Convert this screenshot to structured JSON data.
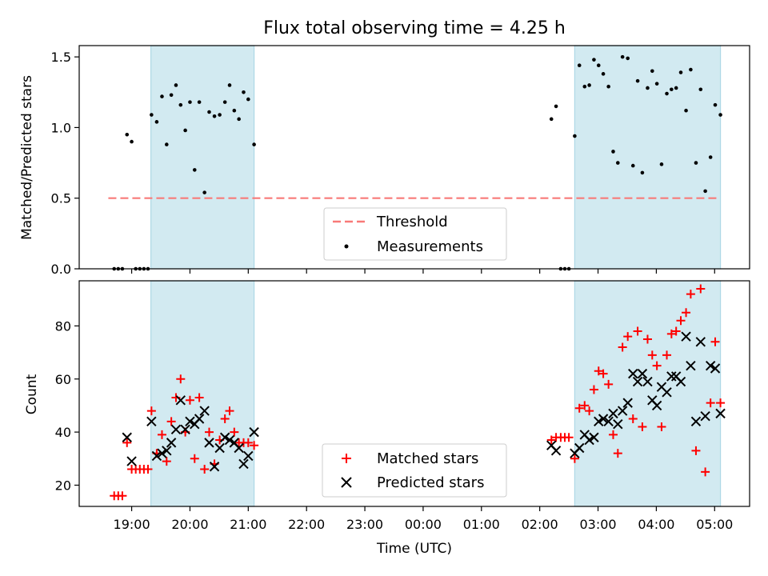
{
  "chart_data": [
    {
      "type": "scatter",
      "title": "Flux total observing time = 4.25 h",
      "ylabel": "Matched/Predicted stars",
      "xlabel": "",
      "xlim": [
        18.1,
        29.6
      ],
      "ylim": [
        0,
        1.58
      ],
      "yticks": [
        0,
        0.5,
        1.0,
        1.5
      ],
      "ytick_labels": [
        "0.0",
        "0.5",
        "1.0",
        "1.5"
      ],
      "shaded_intervals": [
        [
          19.33,
          21.1
        ],
        [
          26.6,
          29.1
        ]
      ],
      "threshold": {
        "label": "Threshold",
        "value": 0.5,
        "x_range": [
          18.6,
          29.05
        ],
        "color": "#f87a78"
      },
      "legend": {
        "position": "lower-center",
        "entries": [
          "Threshold",
          "Measurements"
        ]
      },
      "series": [
        {
          "name": "Measurements",
          "color": "#000000",
          "points": [
            [
              18.7,
              0
            ],
            [
              18.77,
              0
            ],
            [
              18.84,
              0
            ],
            [
              18.92,
              0.95
            ],
            [
              19.0,
              0.9
            ],
            [
              19.07,
              0
            ],
            [
              19.14,
              0
            ],
            [
              19.21,
              0
            ],
            [
              19.28,
              0
            ],
            [
              19.34,
              1.09
            ],
            [
              19.43,
              1.04
            ],
            [
              19.52,
              1.22
            ],
            [
              19.6,
              0.88
            ],
            [
              19.68,
              1.23
            ],
            [
              19.76,
              1.3
            ],
            [
              19.84,
              1.16
            ],
            [
              19.92,
              0.98
            ],
            [
              20.0,
              1.18
            ],
            [
              20.08,
              0.7
            ],
            [
              20.16,
              1.18
            ],
            [
              20.25,
              0.54
            ],
            [
              20.33,
              1.11
            ],
            [
              20.42,
              1.08
            ],
            [
              20.51,
              1.09
            ],
            [
              20.6,
              1.18
            ],
            [
              20.68,
              1.3
            ],
            [
              20.76,
              1.12
            ],
            [
              20.84,
              1.06
            ],
            [
              20.92,
              1.25
            ],
            [
              21.0,
              1.2
            ],
            [
              21.1,
              0.88
            ],
            [
              26.2,
              1.06
            ],
            [
              26.28,
              1.15
            ],
            [
              26.36,
              0
            ],
            [
              26.43,
              0
            ],
            [
              26.5,
              0
            ],
            [
              26.6,
              0.94
            ],
            [
              26.68,
              1.44
            ],
            [
              26.77,
              1.29
            ],
            [
              26.85,
              1.3
            ],
            [
              26.93,
              1.48
            ],
            [
              27.01,
              1.44
            ],
            [
              27.09,
              1.38
            ],
            [
              27.18,
              1.29
            ],
            [
              27.26,
              0.83
            ],
            [
              27.34,
              0.75
            ],
            [
              27.42,
              1.5
            ],
            [
              27.51,
              1.49
            ],
            [
              27.6,
              0.73
            ],
            [
              27.68,
              1.33
            ],
            [
              27.76,
              0.68
            ],
            [
              27.85,
              1.28
            ],
            [
              27.93,
              1.4
            ],
            [
              28.01,
              1.31
            ],
            [
              28.09,
              0.74
            ],
            [
              28.18,
              1.24
            ],
            [
              28.26,
              1.27
            ],
            [
              28.34,
              1.28
            ],
            [
              28.42,
              1.39
            ],
            [
              28.51,
              1.12
            ],
            [
              28.59,
              1.41
            ],
            [
              28.68,
              0.75
            ],
            [
              28.76,
              1.27
            ],
            [
              28.84,
              0.55
            ],
            [
              28.93,
              0.79
            ],
            [
              29.01,
              1.16
            ],
            [
              29.1,
              1.09
            ]
          ]
        }
      ]
    },
    {
      "type": "scatter",
      "title": "",
      "ylabel": "Count",
      "xlabel": "Time (UTC)",
      "xlim": [
        18.1,
        29.6
      ],
      "ylim": [
        12,
        97
      ],
      "yticks": [
        20,
        40,
        60,
        80
      ],
      "ytick_labels": [
        "20",
        "40",
        "60",
        "80"
      ],
      "xticks": [
        19,
        20,
        21,
        22,
        23,
        24,
        25,
        26,
        27,
        28,
        29
      ],
      "xtick_labels": [
        "19:00",
        "20:00",
        "21:00",
        "22:00",
        "23:00",
        "00:00",
        "01:00",
        "02:00",
        "03:00",
        "04:00",
        "05:00"
      ],
      "shaded_intervals": [
        [
          19.33,
          21.1
        ],
        [
          26.6,
          29.1
        ]
      ],
      "legend": {
        "position": "lower-center",
        "entries": [
          "Matched stars",
          "Predicted stars"
        ]
      },
      "series": [
        {
          "name": "Matched stars",
          "marker": "plus",
          "color": "#ff0000",
          "points": [
            [
              18.7,
              16
            ],
            [
              18.77,
              16
            ],
            [
              18.84,
              16
            ],
            [
              18.92,
              36
            ],
            [
              19.0,
              26
            ],
            [
              19.07,
              26
            ],
            [
              19.14,
              26
            ],
            [
              19.21,
              26
            ],
            [
              19.28,
              26
            ],
            [
              19.34,
              48
            ],
            [
              19.43,
              32
            ],
            [
              19.52,
              39
            ],
            [
              19.6,
              29
            ],
            [
              19.68,
              44
            ],
            [
              19.76,
              53
            ],
            [
              19.84,
              60
            ],
            [
              19.92,
              40
            ],
            [
              20.0,
              52
            ],
            [
              20.08,
              30
            ],
            [
              20.16,
              53
            ],
            [
              20.25,
              26
            ],
            [
              20.33,
              40
            ],
            [
              20.42,
              28
            ],
            [
              20.51,
              37
            ],
            [
              20.6,
              45
            ],
            [
              20.68,
              48
            ],
            [
              20.76,
              40
            ],
            [
              20.84,
              36
            ],
            [
              20.92,
              36
            ],
            [
              21.0,
              36
            ],
            [
              21.1,
              35
            ],
            [
              26.2,
              37
            ],
            [
              26.28,
              38
            ],
            [
              26.36,
              38
            ],
            [
              26.43,
              38
            ],
            [
              26.5,
              38
            ],
            [
              26.6,
              30
            ],
            [
              26.68,
              49
            ],
            [
              26.77,
              50
            ],
            [
              26.85,
              48
            ],
            [
              26.93,
              56
            ],
            [
              27.01,
              63
            ],
            [
              27.09,
              62
            ],
            [
              27.18,
              58
            ],
            [
              27.26,
              39
            ],
            [
              27.34,
              32
            ],
            [
              27.42,
              72
            ],
            [
              27.51,
              76
            ],
            [
              27.6,
              45
            ],
            [
              27.68,
              78
            ],
            [
              27.76,
              42
            ],
            [
              27.85,
              75
            ],
            [
              27.93,
              69
            ],
            [
              28.01,
              65
            ],
            [
              28.09,
              42
            ],
            [
              28.18,
              69
            ],
            [
              28.26,
              77
            ],
            [
              28.34,
              78
            ],
            [
              28.42,
              82
            ],
            [
              28.51,
              85
            ],
            [
              28.59,
              92
            ],
            [
              28.68,
              33
            ],
            [
              28.76,
              94
            ],
            [
              28.84,
              25
            ],
            [
              28.93,
              51
            ],
            [
              29.01,
              74
            ],
            [
              29.1,
              51
            ]
          ]
        },
        {
          "name": "Predicted stars",
          "marker": "x",
          "color": "#000000",
          "points": [
            [
              18.92,
              38
            ],
            [
              19.0,
              29
            ],
            [
              19.34,
              44
            ],
            [
              19.43,
              31
            ],
            [
              19.52,
              32
            ],
            [
              19.6,
              33
            ],
            [
              19.68,
              36
            ],
            [
              19.76,
              41
            ],
            [
              19.84,
              52
            ],
            [
              19.92,
              41
            ],
            [
              20.0,
              44
            ],
            [
              20.08,
              43
            ],
            [
              20.16,
              45
            ],
            [
              20.25,
              48
            ],
            [
              20.33,
              36
            ],
            [
              20.42,
              27
            ],
            [
              20.51,
              34
            ],
            [
              20.6,
              38
            ],
            [
              20.68,
              37
            ],
            [
              20.76,
              36
            ],
            [
              20.84,
              34
            ],
            [
              20.92,
              28
            ],
            [
              21.0,
              31
            ],
            [
              21.1,
              40
            ],
            [
              26.2,
              35
            ],
            [
              26.28,
              33
            ],
            [
              26.6,
              32
            ],
            [
              26.68,
              34
            ],
            [
              26.77,
              39
            ],
            [
              26.85,
              37
            ],
            [
              26.93,
              38
            ],
            [
              27.01,
              44
            ],
            [
              27.09,
              45
            ],
            [
              27.18,
              44
            ],
            [
              27.26,
              47
            ],
            [
              27.34,
              43
            ],
            [
              27.42,
              48
            ],
            [
              27.51,
              51
            ],
            [
              27.6,
              62
            ],
            [
              27.68,
              59
            ],
            [
              27.76,
              62
            ],
            [
              27.85,
              59
            ],
            [
              27.93,
              52
            ],
            [
              28.01,
              50
            ],
            [
              28.09,
              57
            ],
            [
              28.18,
              55
            ],
            [
              28.26,
              61
            ],
            [
              28.34,
              61
            ],
            [
              28.42,
              59
            ],
            [
              28.51,
              76
            ],
            [
              28.59,
              65
            ],
            [
              28.68,
              44
            ],
            [
              28.76,
              74
            ],
            [
              28.84,
              46
            ],
            [
              28.93,
              65
            ],
            [
              29.01,
              64
            ],
            [
              29.1,
              47
            ]
          ]
        }
      ]
    }
  ]
}
